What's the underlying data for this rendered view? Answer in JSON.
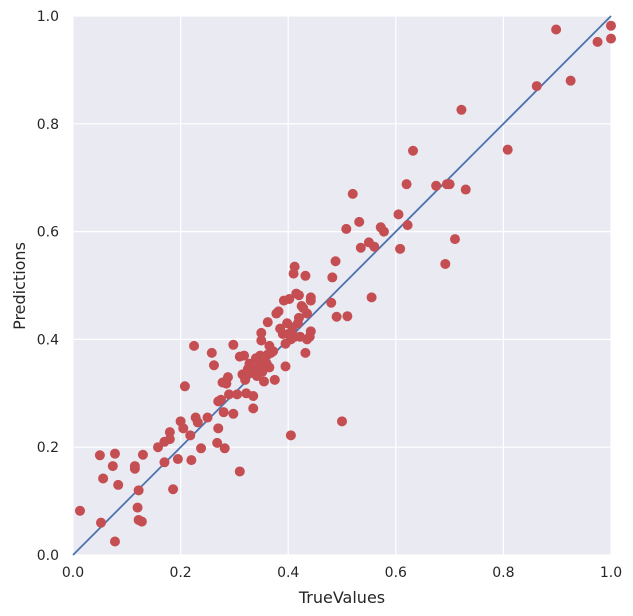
{
  "chart_data": {
    "type": "scatter",
    "title": "",
    "xlabel": "TrueValues",
    "ylabel": "Predictions",
    "xlim": [
      0.0,
      1.0
    ],
    "ylim": [
      0.0,
      1.0
    ],
    "xticks": [
      "0.0",
      "0.2",
      "0.4",
      "0.6",
      "0.8",
      "1.0"
    ],
    "yticks": [
      "0.0",
      "0.2",
      "0.4",
      "0.6",
      "0.8",
      "1.0"
    ],
    "grid": true,
    "colors": {
      "plot_background": "#eaeaf2",
      "grid": "#ffffff",
      "points": "#c44e52",
      "reference_line": "#4c72b0"
    },
    "reference_line": {
      "from": [
        0.0,
        0.0
      ],
      "to": [
        1.0,
        1.0
      ]
    },
    "series": [
      {
        "points": [
          [
            0.013,
            0.082
          ],
          [
            0.05,
            0.185
          ],
          [
            0.052,
            0.06
          ],
          [
            0.056,
            0.142
          ],
          [
            0.074,
            0.165
          ],
          [
            0.078,
            0.188
          ],
          [
            0.078,
            0.025
          ],
          [
            0.084,
            0.13
          ],
          [
            0.115,
            0.165
          ],
          [
            0.115,
            0.16
          ],
          [
            0.12,
            0.088
          ],
          [
            0.122,
            0.12
          ],
          [
            0.122,
            0.065
          ],
          [
            0.128,
            0.062
          ],
          [
            0.13,
            0.186
          ],
          [
            0.158,
            0.2
          ],
          [
            0.17,
            0.172
          ],
          [
            0.17,
            0.21
          ],
          [
            0.18,
            0.215
          ],
          [
            0.18,
            0.228
          ],
          [
            0.186,
            0.122
          ],
          [
            0.195,
            0.178
          ],
          [
            0.2,
            0.248
          ],
          [
            0.205,
            0.235
          ],
          [
            0.208,
            0.313
          ],
          [
            0.218,
            0.222
          ],
          [
            0.22,
            0.176
          ],
          [
            0.225,
            0.388
          ],
          [
            0.228,
            0.255
          ],
          [
            0.232,
            0.246
          ],
          [
            0.238,
            0.198
          ],
          [
            0.25,
            0.255
          ],
          [
            0.258,
            0.375
          ],
          [
            0.262,
            0.352
          ],
          [
            0.268,
            0.208
          ],
          [
            0.27,
            0.235
          ],
          [
            0.27,
            0.285
          ],
          [
            0.275,
            0.288
          ],
          [
            0.278,
            0.32
          ],
          [
            0.28,
            0.265
          ],
          [
            0.282,
            0.198
          ],
          [
            0.285,
            0.318
          ],
          [
            0.288,
            0.33
          ],
          [
            0.29,
            0.298
          ],
          [
            0.298,
            0.262
          ],
          [
            0.298,
            0.39
          ],
          [
            0.305,
            0.298
          ],
          [
            0.31,
            0.155
          ],
          [
            0.31,
            0.368
          ],
          [
            0.315,
            0.335
          ],
          [
            0.318,
            0.37
          ],
          [
            0.32,
            0.325
          ],
          [
            0.322,
            0.3
          ],
          [
            0.325,
            0.345
          ],
          [
            0.328,
            0.355
          ],
          [
            0.332,
            0.338
          ],
          [
            0.335,
            0.272
          ],
          [
            0.335,
            0.295
          ],
          [
            0.338,
            0.345
          ],
          [
            0.34,
            0.365
          ],
          [
            0.342,
            0.332
          ],
          [
            0.345,
            0.35
          ],
          [
            0.348,
            0.37
          ],
          [
            0.35,
            0.398
          ],
          [
            0.35,
            0.412
          ],
          [
            0.352,
            0.34
          ],
          [
            0.355,
            0.322
          ],
          [
            0.355,
            0.36
          ],
          [
            0.358,
            0.368
          ],
          [
            0.36,
            0.355
          ],
          [
            0.362,
            0.372
          ],
          [
            0.362,
            0.432
          ],
          [
            0.365,
            0.348
          ],
          [
            0.365,
            0.388
          ],
          [
            0.368,
            0.375
          ],
          [
            0.372,
            0.378
          ],
          [
            0.375,
            0.325
          ],
          [
            0.378,
            0.448
          ],
          [
            0.382,
            0.452
          ],
          [
            0.385,
            0.42
          ],
          [
            0.39,
            0.41
          ],
          [
            0.392,
            0.472
          ],
          [
            0.395,
            0.392
          ],
          [
            0.395,
            0.35
          ],
          [
            0.398,
            0.43
          ],
          [
            0.4,
            0.41
          ],
          [
            0.402,
            0.475
          ],
          [
            0.405,
            0.222
          ],
          [
            0.405,
            0.4
          ],
          [
            0.408,
            0.422
          ],
          [
            0.41,
            0.522
          ],
          [
            0.412,
            0.535
          ],
          [
            0.412,
            0.405
          ],
          [
            0.415,
            0.485
          ],
          [
            0.418,
            0.43
          ],
          [
            0.42,
            0.482
          ],
          [
            0.42,
            0.44
          ],
          [
            0.422,
            0.405
          ],
          [
            0.425,
            0.462
          ],
          [
            0.428,
            0.458
          ],
          [
            0.432,
            0.375
          ],
          [
            0.432,
            0.518
          ],
          [
            0.435,
            0.4
          ],
          [
            0.435,
            0.448
          ],
          [
            0.44,
            0.405
          ],
          [
            0.442,
            0.472
          ],
          [
            0.442,
            0.478
          ],
          [
            0.442,
            0.415
          ],
          [
            0.48,
            0.468
          ],
          [
            0.482,
            0.515
          ],
          [
            0.488,
            0.545
          ],
          [
            0.49,
            0.442
          ],
          [
            0.5,
            0.248
          ],
          [
            0.508,
            0.605
          ],
          [
            0.51,
            0.443
          ],
          [
            0.52,
            0.67
          ],
          [
            0.532,
            0.618
          ],
          [
            0.535,
            0.57
          ],
          [
            0.55,
            0.58
          ],
          [
            0.555,
            0.478
          ],
          [
            0.56,
            0.572
          ],
          [
            0.572,
            0.608
          ],
          [
            0.578,
            0.6
          ],
          [
            0.605,
            0.632
          ],
          [
            0.608,
            0.568
          ],
          [
            0.62,
            0.688
          ],
          [
            0.622,
            0.612
          ],
          [
            0.632,
            0.75
          ],
          [
            0.675,
            0.685
          ],
          [
            0.692,
            0.54
          ],
          [
            0.695,
            0.688
          ],
          [
            0.7,
            0.688
          ],
          [
            0.71,
            0.586
          ],
          [
            0.722,
            0.826
          ],
          [
            0.73,
            0.678
          ],
          [
            0.808,
            0.752
          ],
          [
            0.862,
            0.87
          ],
          [
            0.898,
            0.975
          ],
          [
            0.925,
            0.88
          ],
          [
            0.975,
            0.952
          ],
          [
            1.0,
            0.982
          ],
          [
            1.0,
            0.958
          ]
        ]
      }
    ]
  }
}
